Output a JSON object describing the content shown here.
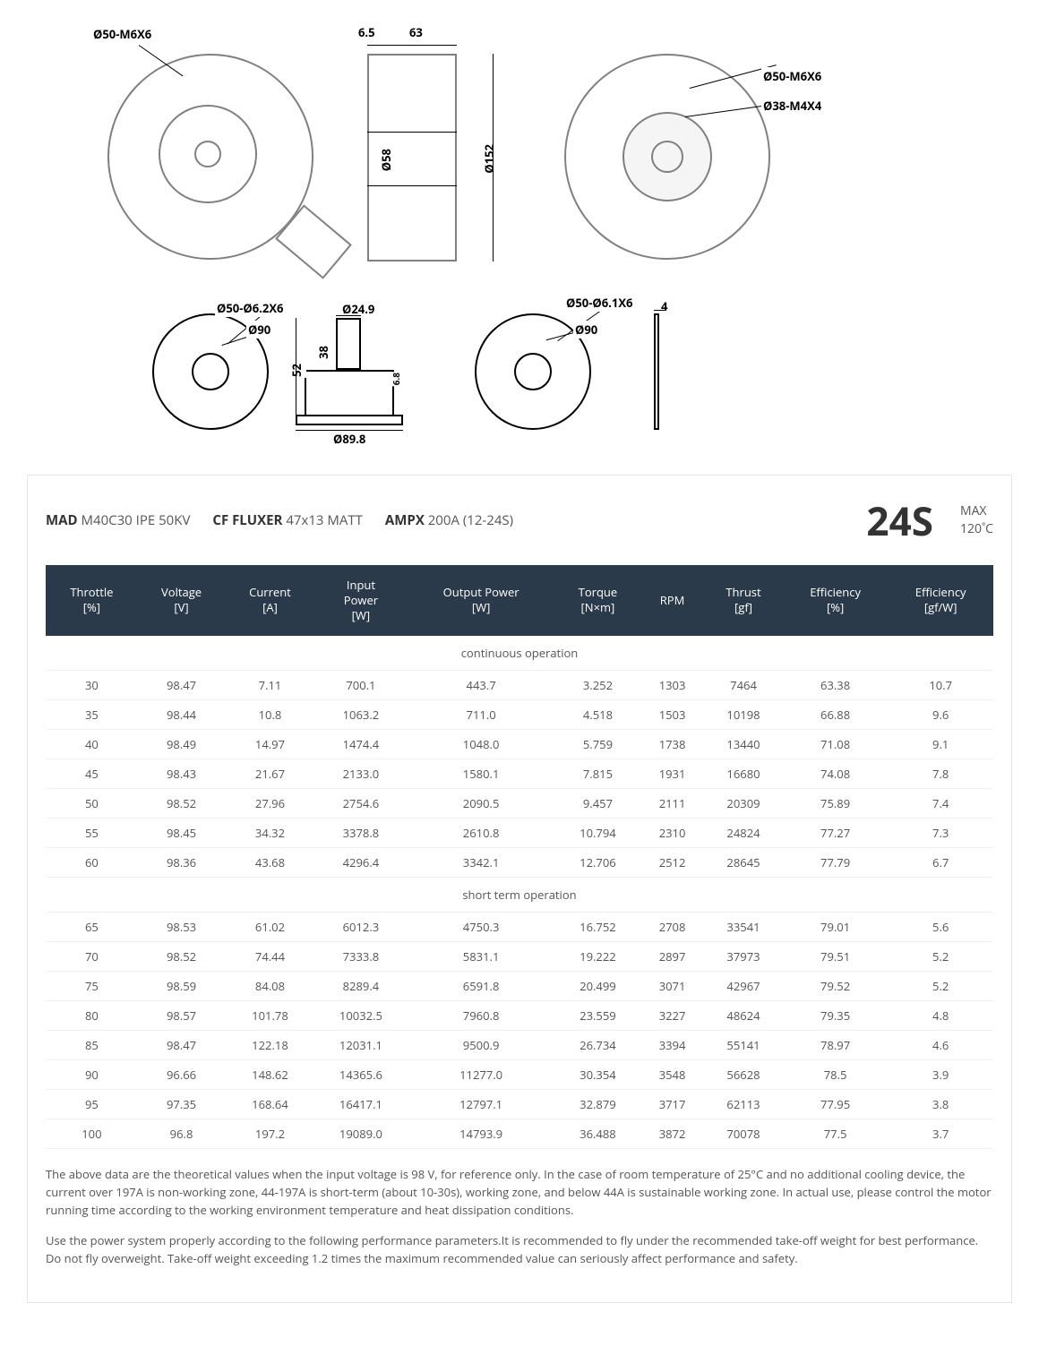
{
  "diagrams": {
    "top_left": "Ø50-M6X6",
    "top_mid_w1": "6.5",
    "top_mid_w2": "63",
    "top_mid_h1": "Ø58",
    "top_mid_h2": "Ø152",
    "top_right_1": "Ø50-M6X6",
    "top_right_2": "Ø38-M4X4",
    "bot_left_1": "Ø50-Ø6.2X6",
    "bot_left_2": "Ø90",
    "bot_mid_1": "Ø24.9",
    "bot_mid_h1": "52",
    "bot_mid_h2": "38",
    "bot_mid_w1": "6.8",
    "bot_mid_w2": "Ø89.8",
    "bot_right_1": "Ø50-Ø6.1X6",
    "bot_right_2": "Ø90",
    "bot_right_3": "4"
  },
  "header": {
    "brand1": "MAD",
    "model1": "M40C30 IPE 50KV",
    "brand2": "CF FLUXER",
    "model2": "47x13 MATT",
    "brand3": "AMPX",
    "model3": "200A (12-24S)",
    "cells": "24S",
    "max_label": "MAX",
    "max_temp": "120˚C"
  },
  "table": {
    "columns": [
      "Throttle\n[%]",
      "Voltage\n[V]",
      "Current\n[A]",
      "Input\nPower\n[W]",
      "Output Power\n[W]",
      "Torque\n[N×m]",
      "RPM",
      "Thrust\n[gf]",
      "Efficiency\n[%]",
      "Efficiency\n[gf/W]"
    ],
    "section1": "continuous operation",
    "rows1": [
      [
        "30",
        "98.47",
        "7.11",
        "700.1",
        "443.7",
        "3.252",
        "1303",
        "7464",
        "63.38",
        "10.7"
      ],
      [
        "35",
        "98.44",
        "10.8",
        "1063.2",
        "711.0",
        "4.518",
        "1503",
        "10198",
        "66.88",
        "9.6"
      ],
      [
        "40",
        "98.49",
        "14.97",
        "1474.4",
        "1048.0",
        "5.759",
        "1738",
        "13440",
        "71.08",
        "9.1"
      ],
      [
        "45",
        "98.43",
        "21.67",
        "2133.0",
        "1580.1",
        "7.815",
        "1931",
        "16680",
        "74.08",
        "7.8"
      ],
      [
        "50",
        "98.52",
        "27.96",
        "2754.6",
        "2090.5",
        "9.457",
        "2111",
        "20309",
        "75.89",
        "7.4"
      ],
      [
        "55",
        "98.45",
        "34.32",
        "3378.8",
        "2610.8",
        "10.794",
        "2310",
        "24824",
        "77.27",
        "7.3"
      ],
      [
        "60",
        "98.36",
        "43.68",
        "4296.4",
        "3342.1",
        "12.706",
        "2512",
        "28645",
        "77.79",
        "6.7"
      ]
    ],
    "section2": "short term operation",
    "rows2": [
      [
        "65",
        "98.53",
        "61.02",
        "6012.3",
        "4750.3",
        "16.752",
        "2708",
        "33541",
        "79.01",
        "5.6"
      ],
      [
        "70",
        "98.52",
        "74.44",
        "7333.8",
        "5831.1",
        "19.222",
        "2897",
        "37973",
        "79.51",
        "5.2"
      ],
      [
        "75",
        "98.59",
        "84.08",
        "8289.4",
        "6591.8",
        "20.499",
        "3071",
        "42967",
        "79.52",
        "5.2"
      ],
      [
        "80",
        "98.57",
        "101.78",
        "10032.5",
        "7960.8",
        "23.559",
        "3227",
        "48624",
        "79.35",
        "4.8"
      ],
      [
        "85",
        "98.47",
        "122.18",
        "12031.1",
        "9500.9",
        "26.734",
        "3394",
        "55141",
        "78.97",
        "4.6"
      ],
      [
        "90",
        "96.66",
        "148.62",
        "14365.6",
        "11277.0",
        "30.354",
        "3548",
        "56628",
        "78.5",
        "3.9"
      ],
      [
        "95",
        "97.35",
        "168.64",
        "16417.1",
        "12797.1",
        "32.879",
        "3717",
        "62113",
        "77.95",
        "3.8"
      ],
      [
        "100",
        "96.8",
        "197.2",
        "19089.0",
        "14793.9",
        "36.488",
        "3872",
        "70078",
        "77.5",
        "3.7"
      ]
    ]
  },
  "notes": {
    "p1": "The above data are the theoretical values when the input voltage is 98 V, for reference only. In the case of room temperature of 25°C and no additional cooling device, the current over 197A is non-working zone, 44-197A is short-term (about 10-30s), working zone, and below 44A is sustainable working zone. In actual use, please control the motor running time according to the working environment temperature and heat dissipation conditions.",
    "p2": "Use the power system properly according to the following performance parameters.It is recommended to fly under the recommended take-off weight for best performance. Do not fly overweight. Take-off weight exceeding 1.2 times the maximum recommended value can seriously affect performance and safety."
  },
  "style": {
    "header_bg": "#2b3a4a",
    "header_fg": "#ffffff",
    "border": "#e5e5e5",
    "row_border": "#f0f0f0",
    "text": "#555555",
    "strong": "#333333"
  }
}
